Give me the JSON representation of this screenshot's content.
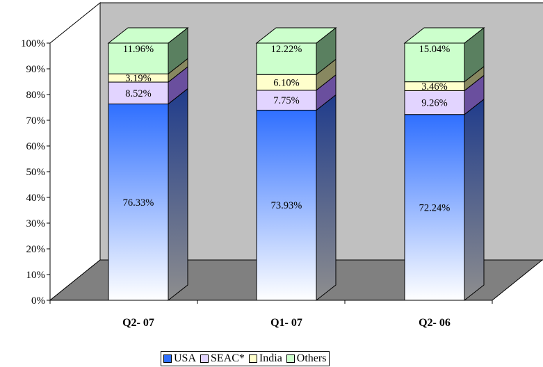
{
  "chart_data": {
    "type": "bar",
    "stacked": true,
    "percent_stacked": true,
    "three_d": true,
    "title": "",
    "xlabel": "",
    "ylabel": "",
    "categories": [
      "Q2- 07",
      "Q1- 07",
      "Q2- 06"
    ],
    "ylim": [
      0,
      100
    ],
    "y_ticks": [
      "0%",
      "10%",
      "20%",
      "30%",
      "40%",
      "50%",
      "60%",
      "70%",
      "80%",
      "90%",
      "100%"
    ],
    "grid": false,
    "legend_position": "bottom",
    "series": [
      {
        "name": "USA",
        "values": [
          76.33,
          73.93,
          72.24
        ],
        "labels": [
          "76.33%",
          "73.93%",
          "72.24%"
        ],
        "color": "#2f6fff",
        "dark": "#23409a"
      },
      {
        "name": "SEAC*",
        "values": [
          8.52,
          7.75,
          9.26
        ],
        "labels": [
          "8.52%",
          "7.75%",
          "9.26%"
        ],
        "color": "#e2d4ff",
        "dark": "#6a4f9e"
      },
      {
        "name": "India",
        "values": [
          3.19,
          6.1,
          3.46
        ],
        "labels": [
          "3.19%",
          "6.10%",
          "3.46%"
        ],
        "color": "#ffffcc",
        "dark": "#888860"
      },
      {
        "name": "Others",
        "values": [
          11.96,
          12.22,
          15.04
        ],
        "labels": [
          "11.96%",
          "12.22%",
          "15.04%"
        ],
        "color": "#ccffcc",
        "dark": "#5a8060"
      }
    ],
    "colors": {
      "back_wall": "#c0c0c0",
      "floor": "#808080"
    }
  }
}
